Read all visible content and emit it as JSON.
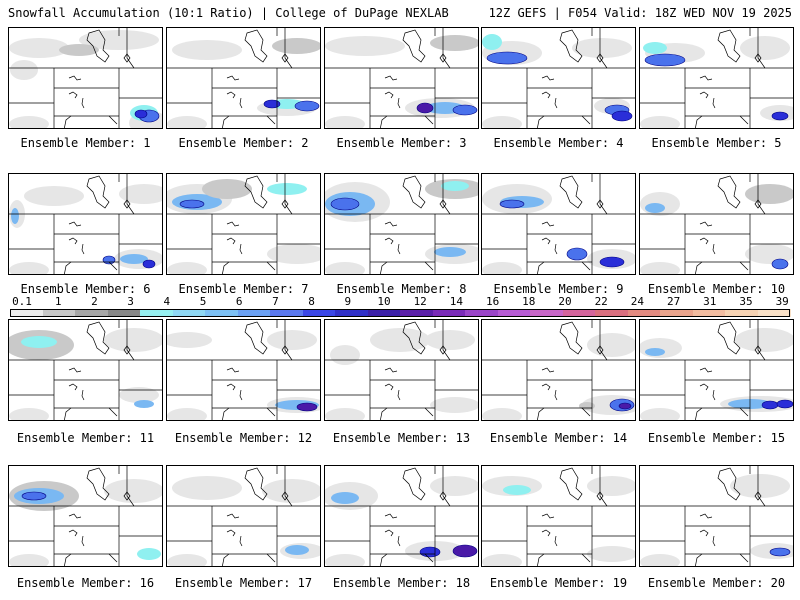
{
  "header": {
    "title_left": "Snowfall Accumulation (10:1 Ratio) | College of DuPage NEXLAB",
    "title_right": "12Z GEFS | F054 Valid: 18Z WED NOV 19 2025"
  },
  "colorbar": {
    "labels": [
      "0.1",
      "1",
      "2",
      "3",
      "4",
      "5",
      "6",
      "7",
      "8",
      "9",
      "10",
      "12",
      "14",
      "16",
      "18",
      "20",
      "22",
      "24",
      "27",
      "31",
      "35",
      "39"
    ],
    "colors": [
      "#ececec",
      "#c8c8c8",
      "#a6a6a6",
      "#888888",
      "#96f0f0",
      "#8fd8f4",
      "#7cc0f4",
      "#6aa0f2",
      "#5a78ee",
      "#3a46e6",
      "#2f2fc8",
      "#3a1ea8",
      "#5a1ea8",
      "#7a2ab8",
      "#9a44c8",
      "#b65ad4",
      "#c866c8",
      "#d4649c",
      "#d96e7e",
      "#e28a80",
      "#eaa48c",
      "#f2bca0",
      "#f6d2b2",
      "#f9e0c6"
    ]
  },
  "members": [
    {
      "label": "Ensemble Member: 1"
    },
    {
      "label": "Ensemble Member: 2"
    },
    {
      "label": "Ensemble Member: 3"
    },
    {
      "label": "Ensemble Member: 4"
    },
    {
      "label": "Ensemble Member: 5"
    },
    {
      "label": "Ensemble Member: 6"
    },
    {
      "label": "Ensemble Member: 7"
    },
    {
      "label": "Ensemble Member: 8"
    },
    {
      "label": "Ensemble Member: 9"
    },
    {
      "label": "Ensemble Member: 10"
    },
    {
      "label": "Ensemble Member: 11"
    },
    {
      "label": "Ensemble Member: 12"
    },
    {
      "label": "Ensemble Member: 13"
    },
    {
      "label": "Ensemble Member: 14"
    },
    {
      "label": "Ensemble Member: 15"
    },
    {
      "label": "Ensemble Member: 16"
    },
    {
      "label": "Ensemble Member: 17"
    },
    {
      "label": "Ensemble Member: 18"
    },
    {
      "label": "Ensemble Member: 19"
    },
    {
      "label": "Ensemble Member: 20"
    }
  ]
}
